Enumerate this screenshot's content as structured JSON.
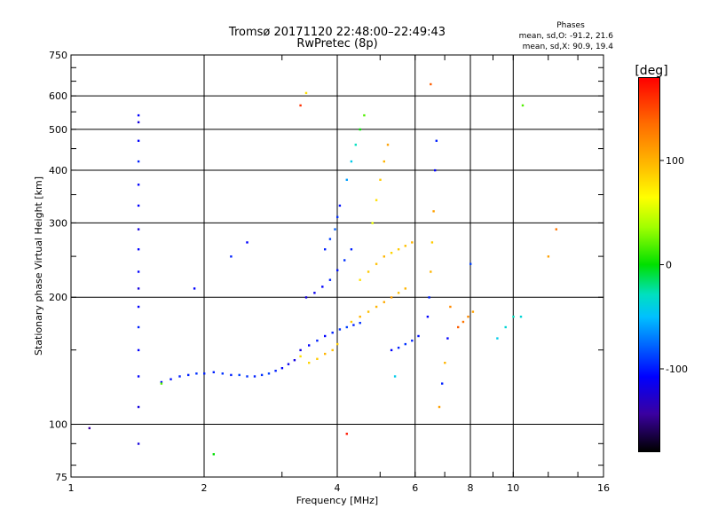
{
  "chart_data": {
    "type": "scatter",
    "title": "Tromsø 20171120 22:48:00–22:49:43",
    "subtitle": "RwPretec (8p)",
    "xlabel": "Frequency [MHz]",
    "ylabel": "Stationary phase Virtual Height [km]",
    "x_scale": "log",
    "y_scale": "log",
    "xlim": [
      1,
      16
    ],
    "ylim": [
      75,
      750
    ],
    "x_ticks": [
      "1",
      "2",
      "4",
      "6",
      "8",
      "10",
      "16"
    ],
    "y_ticks": [
      "75",
      "100",
      "200",
      "300",
      "400",
      "500",
      "600",
      "750"
    ],
    "grid": true,
    "stats": {
      "header": "Phases",
      "o_line": "mean, sd,O: -91.2, 21.6",
      "x_line": "mean, sd,X:  90.9, 19.4"
    },
    "colorbar": {
      "label": "[deg]",
      "min": -180,
      "max": 180,
      "ticks": [
        "100",
        "0",
        "-100"
      ],
      "tick_values": [
        100,
        0,
        -100
      ],
      "colormap": "rainbow"
    },
    "series": [
      {
        "x": [
          1.42,
          1.42,
          1.42,
          1.42,
          1.42,
          1.42,
          1.42,
          1.42,
          1.42,
          1.42,
          1.42,
          1.42,
          1.42,
          1.42,
          1.42,
          1.42
        ],
        "y": [
          90,
          110,
          130,
          150,
          170,
          190,
          210,
          230,
          260,
          290,
          330,
          370,
          420,
          470,
          520,
          540
        ],
        "phase": [
          -120,
          -120,
          -110,
          -110,
          -100,
          -110,
          -120,
          -110,
          -110,
          -120,
          -110,
          -110,
          -100,
          -110,
          -120,
          -110
        ]
      },
      {
        "x": [
          1.6,
          1.68,
          1.76,
          1.84,
          1.92,
          2.0,
          2.1,
          2.2,
          2.3,
          2.4,
          2.5,
          2.6,
          2.7,
          2.8,
          2.9,
          3.0,
          3.1,
          3.2
        ],
        "y": [
          126,
          128,
          130,
          131,
          132,
          132,
          133,
          132,
          131,
          131,
          130,
          130,
          131,
          132,
          134,
          136,
          139,
          142
        ],
        "phase": [
          -110,
          -105,
          -100,
          -100,
          -95,
          -100,
          -100,
          -95,
          -100,
          -90,
          -95,
          -100,
          -95,
          -90,
          -100,
          -110,
          -115,
          -120
        ]
      },
      {
        "x": [
          3.3,
          3.45,
          3.6,
          3.75,
          3.9,
          4.05,
          4.2,
          4.35,
          4.5
        ],
        "y": [
          150,
          154,
          158,
          162,
          165,
          168,
          170,
          172,
          174
        ],
        "phase": [
          -120,
          -110,
          -100,
          -110,
          -100,
          -95,
          -90,
          -100,
          -95
        ]
      },
      {
        "x": [
          3.3,
          3.45,
          3.6,
          3.75,
          3.9,
          4.0
        ],
        "y": [
          145,
          140,
          143,
          147,
          150,
          155
        ],
        "phase": [
          80,
          85,
          90,
          100,
          95,
          90
        ]
      },
      {
        "x": [
          3.4,
          3.55,
          3.7,
          3.85,
          4.0,
          4.15,
          4.3
        ],
        "y": [
          200,
          205,
          212,
          220,
          232,
          245,
          260
        ],
        "phase": [
          -120,
          -115,
          -110,
          -100,
          -105,
          -95,
          -100
        ]
      },
      {
        "x": [
          3.75,
          3.85,
          3.95,
          4.0,
          4.05
        ],
        "y": [
          260,
          275,
          290,
          310,
          330
        ],
        "phase": [
          -100,
          -90,
          -80,
          -95,
          -105
        ]
      },
      {
        "x": [
          4.3,
          4.5,
          4.7,
          4.9,
          5.1,
          5.3,
          5.5,
          5.7
        ],
        "y": [
          175,
          180,
          185,
          190,
          195,
          200,
          205,
          210
        ],
        "phase": [
          90,
          100,
          95,
          100,
          105,
          110,
          95,
          100
        ]
      },
      {
        "x": [
          4.5,
          4.7,
          4.9,
          5.1,
          5.3,
          5.5,
          5.7,
          5.9
        ],
        "y": [
          220,
          230,
          240,
          250,
          255,
          260,
          265,
          270
        ],
        "phase": [
          80,
          90,
          95,
          100,
          85,
          90,
          95,
          100
        ]
      },
      {
        "x": [
          4.8,
          4.9,
          5.0,
          5.1,
          5.2
        ],
        "y": [
          300,
          340,
          380,
          420,
          460
        ],
        "phase": [
          60,
          80,
          90,
          100,
          110
        ]
      },
      {
        "x": [
          4.2,
          4.3,
          4.4,
          4.5,
          4.6
        ],
        "y": [
          380,
          420,
          460,
          500,
          540
        ],
        "phase": [
          -60,
          -40,
          -20,
          0,
          20
        ]
      },
      {
        "x": [
          5.3,
          5.5,
          5.7,
          5.9,
          6.1
        ],
        "y": [
          150,
          152,
          155,
          158,
          162
        ],
        "phase": [
          -110,
          -100,
          -95,
          -100,
          -105
        ]
      },
      {
        "x": [
          6.4,
          6.45,
          6.5,
          6.55,
          6.6,
          6.65,
          6.7
        ],
        "y": [
          180,
          200,
          230,
          270,
          320,
          400,
          470
        ],
        "phase": [
          -110,
          -100,
          100,
          90,
          110,
          -110,
          -100
        ]
      },
      {
        "x": [
          6.8,
          6.9,
          7.0,
          7.1,
          7.2
        ],
        "y": [
          110,
          125,
          140,
          160,
          190
        ],
        "phase": [
          110,
          -100,
          100,
          -110,
          120
        ]
      },
      {
        "x": [
          7.5,
          7.7,
          7.9,
          8.1
        ],
        "y": [
          170,
          175,
          180,
          185
        ],
        "phase": [
          140,
          130,
          120,
          110
        ]
      },
      {
        "x": [
          9.2,
          9.6,
          10.0,
          10.4
        ],
        "y": [
          160,
          170,
          180,
          180
        ],
        "phase": [
          -40,
          -30,
          -20,
          -30
        ]
      },
      {
        "x": [
          1.1,
          1.6,
          1.9,
          2.1,
          2.3,
          2.5,
          3.3,
          3.4,
          4.2,
          5.4,
          6.5,
          8.0,
          10.5,
          12.0,
          12.5
        ],
        "y": [
          98,
          125,
          210,
          85,
          250,
          270,
          570,
          610,
          95,
          130,
          640,
          240,
          570,
          250,
          290
        ],
        "phase": [
          -140,
          20,
          -110,
          0,
          -100,
          -110,
          160,
          80,
          170,
          -40,
          140,
          -90,
          20,
          110,
          130
        ]
      }
    ]
  }
}
